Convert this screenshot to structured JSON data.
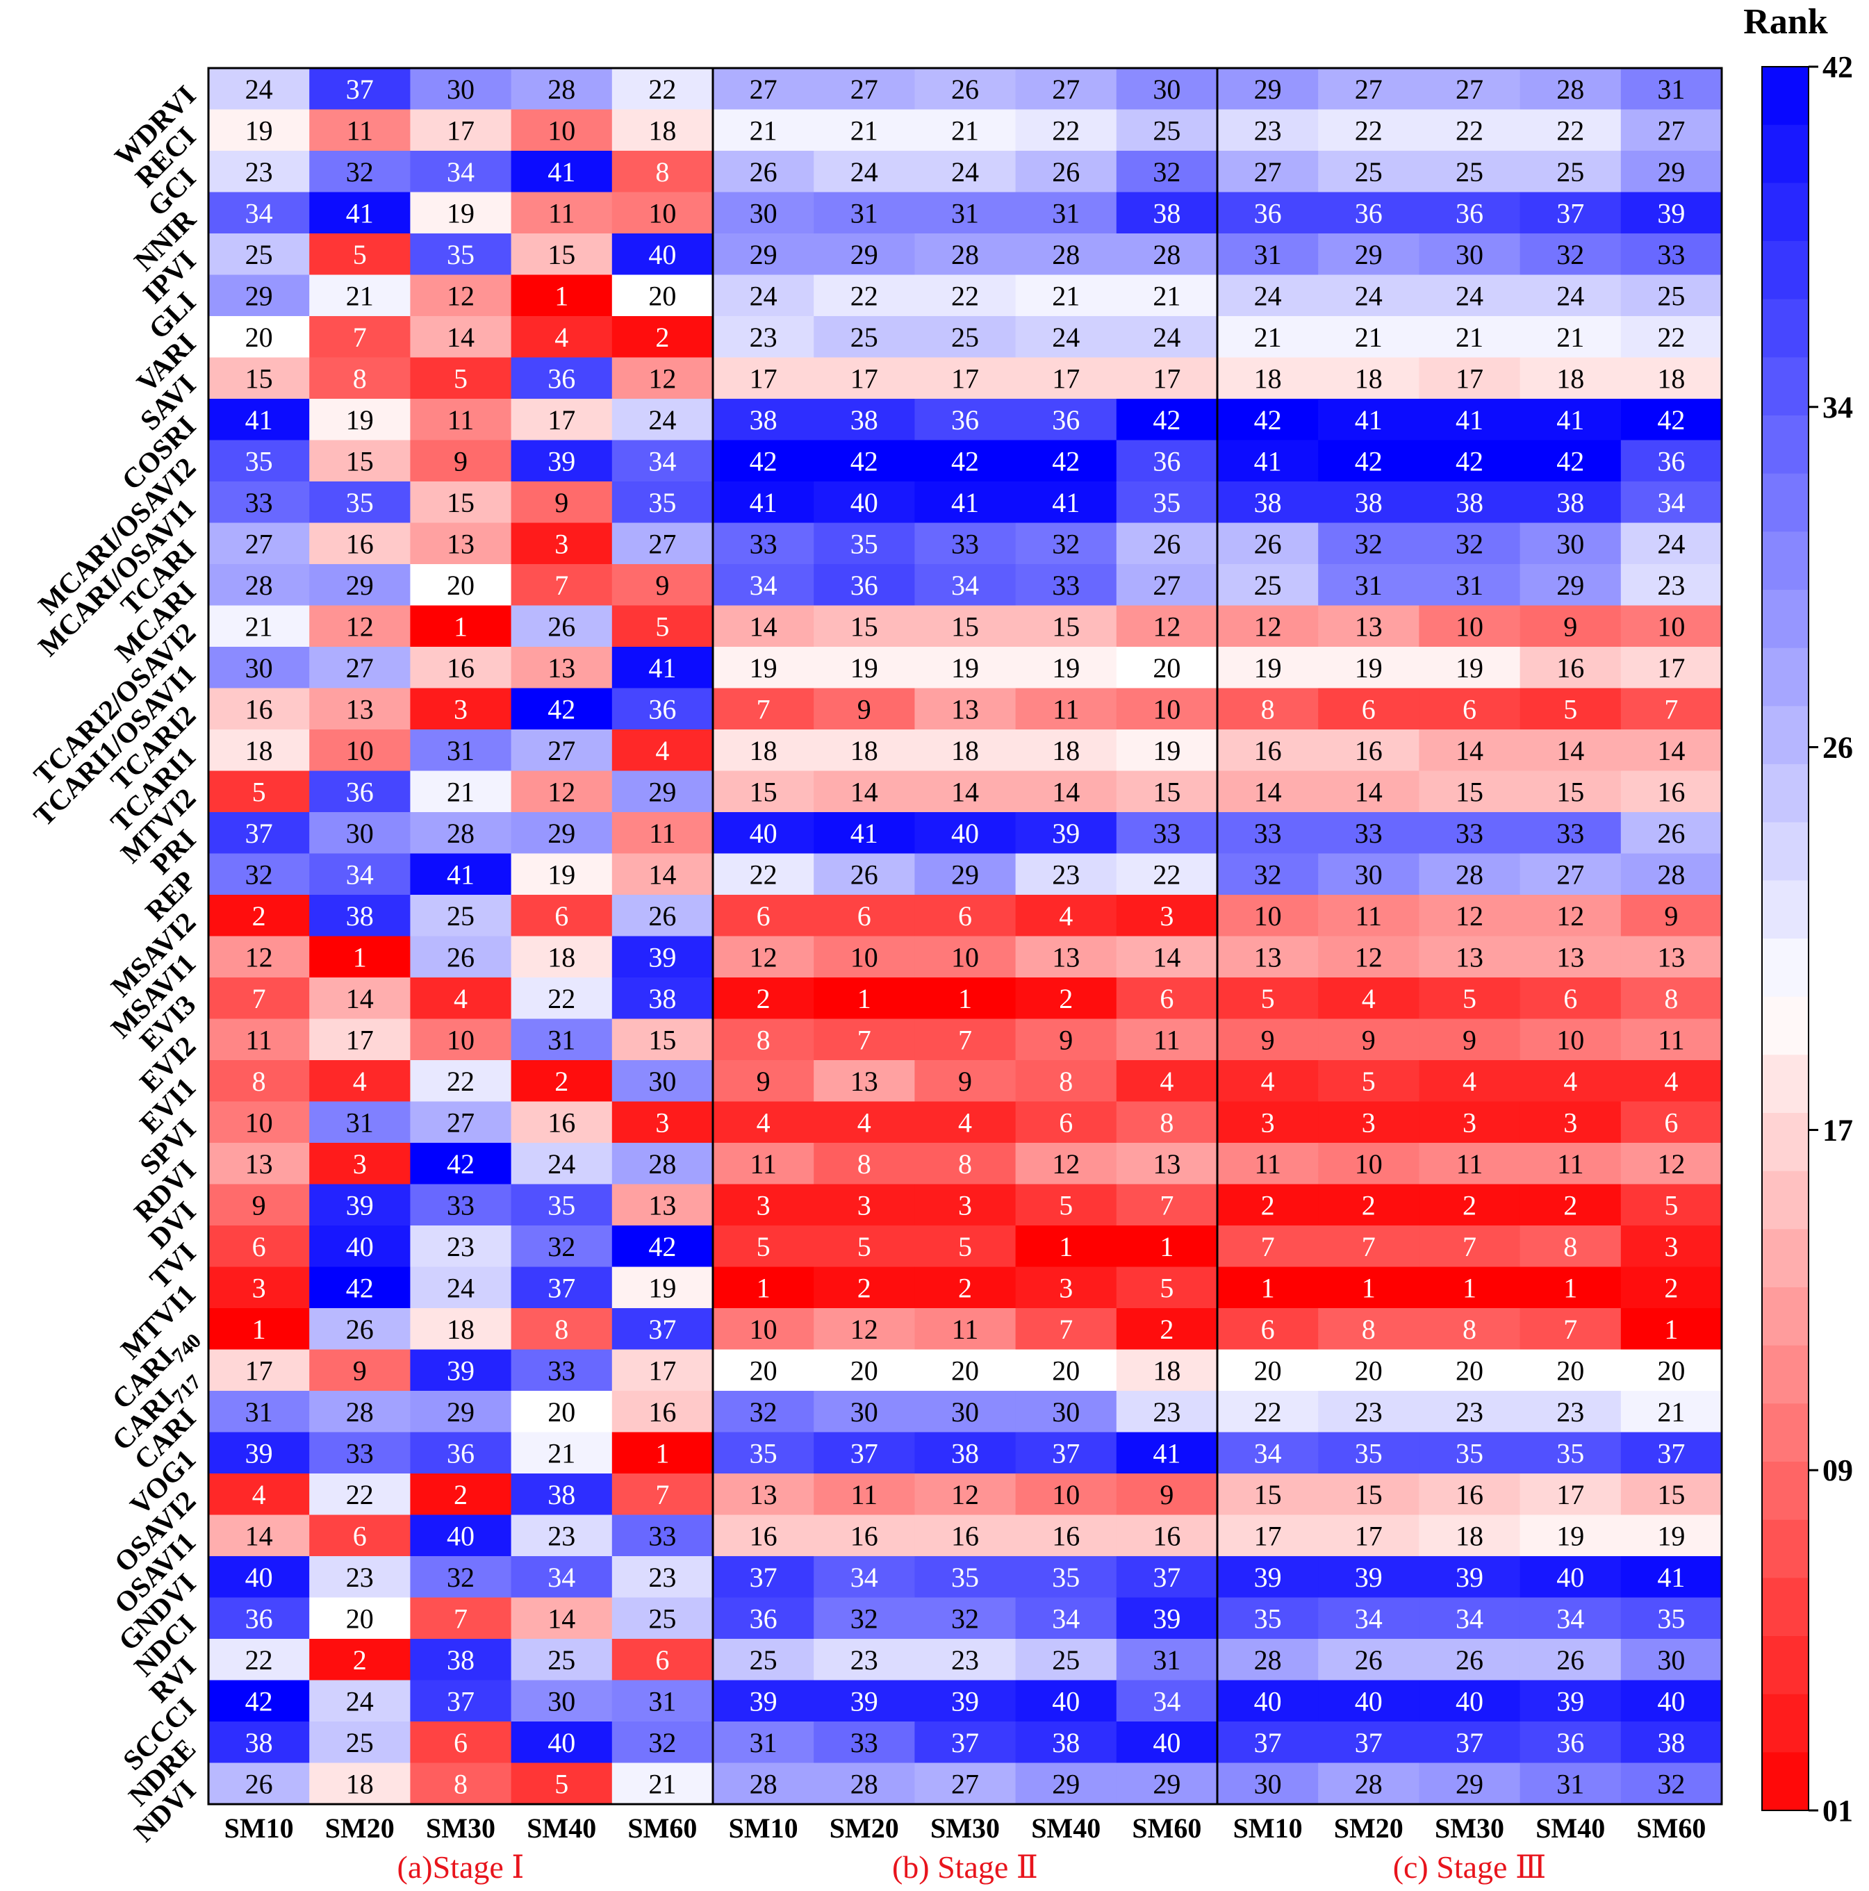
{
  "chart_data": {
    "type": "heatmap",
    "title": "",
    "colorbar": {
      "title": "Rank",
      "tick_labels": [
        "42",
        "34",
        "26",
        "17",
        "09",
        "01"
      ],
      "tick_values": [
        42,
        34,
        26,
        17,
        9,
        1
      ],
      "range": [
        1,
        42
      ],
      "low_color": "#ff0000",
      "mid_color": "#ffffff",
      "high_color": "#0000ff"
    },
    "x_label": "",
    "y_label": "",
    "columns": [
      "SM10",
      "SM20",
      "SM30",
      "SM40",
      "SM60"
    ],
    "rows": [
      "WDRVI",
      "RECI",
      "GCI",
      "NNIR",
      "IPVI",
      "GLI",
      "VARI",
      "SAVI",
      "COSRI",
      "MCARI/OSAVI2",
      "MCARI/OSAVI1",
      "TCARI",
      "MCARI",
      "TCARI2/OSAVI2",
      "TCARI1/OSAVI1",
      "TCARI2",
      "TCARI1",
      "MTVI2",
      "PRI",
      "REP",
      "MSAVI2",
      "MSAVI1",
      "EVI3",
      "EVI2",
      "EVI1",
      "SPVI",
      "RDVI",
      "DVI",
      "TVI",
      "MTVI1",
      "CARI740",
      "CARI717",
      "CARI",
      "VOG1",
      "OSAVI2",
      "OSAVI1",
      "GNDVI",
      "NDCI",
      "RVI",
      "SCCCI",
      "NDRE",
      "NDVI"
    ],
    "row_label_parts": [
      [
        "WDRVI",
        ""
      ],
      [
        "RECI",
        ""
      ],
      [
        "GCI",
        ""
      ],
      [
        "NNIR",
        ""
      ],
      [
        "IPVI",
        ""
      ],
      [
        "GLI",
        ""
      ],
      [
        "VARI",
        ""
      ],
      [
        "SAVI",
        ""
      ],
      [
        "COSRI",
        ""
      ],
      [
        "MCARI/OSAVI2",
        ""
      ],
      [
        "MCARI/OSAVI1",
        ""
      ],
      [
        "TCARI",
        ""
      ],
      [
        "MCARI",
        ""
      ],
      [
        "TCARI2/OSAVI2",
        ""
      ],
      [
        "TCARI1/OSAVI1",
        ""
      ],
      [
        "TCARI2",
        ""
      ],
      [
        "TCARI1",
        ""
      ],
      [
        "MTVI2",
        ""
      ],
      [
        "PRI",
        ""
      ],
      [
        "REP",
        ""
      ],
      [
        "MSAVI2",
        ""
      ],
      [
        "MSAVI1",
        ""
      ],
      [
        "EVI3",
        ""
      ],
      [
        "EVI2",
        ""
      ],
      [
        "EVI1",
        ""
      ],
      [
        "SPVI",
        ""
      ],
      [
        "RDVI",
        ""
      ],
      [
        "DVI",
        ""
      ],
      [
        "TVI",
        ""
      ],
      [
        "MTVI1",
        ""
      ],
      [
        "CARI",
        "740"
      ],
      [
        "CARI",
        "717"
      ],
      [
        "CARI",
        ""
      ],
      [
        "VOG1",
        ""
      ],
      [
        "OSAVI2",
        ""
      ],
      [
        "OSAVI1",
        ""
      ],
      [
        "GNDVI",
        ""
      ],
      [
        "NDCI",
        ""
      ],
      [
        "RVI",
        ""
      ],
      [
        "SCCCI",
        ""
      ],
      [
        "NDRE",
        ""
      ],
      [
        "NDVI",
        ""
      ]
    ],
    "panels": [
      {
        "name": "(a)Stage Ⅰ",
        "values": [
          [
            24,
            37,
            30,
            28,
            22
          ],
          [
            19,
            11,
            17,
            10,
            18
          ],
          [
            23,
            32,
            34,
            41,
            8
          ],
          [
            34,
            41,
            19,
            11,
            10
          ],
          [
            25,
            5,
            35,
            15,
            40
          ],
          [
            29,
            21,
            12,
            1,
            20
          ],
          [
            20,
            7,
            14,
            4,
            2
          ],
          [
            15,
            8,
            5,
            36,
            12
          ],
          [
            41,
            19,
            11,
            17,
            24
          ],
          [
            35,
            15,
            9,
            39,
            34
          ],
          [
            33,
            35,
            15,
            9,
            35
          ],
          [
            27,
            16,
            13,
            3,
            27
          ],
          [
            28,
            29,
            20,
            7,
            9
          ],
          [
            21,
            12,
            1,
            26,
            5
          ],
          [
            30,
            27,
            16,
            13,
            41
          ],
          [
            16,
            13,
            3,
            42,
            36
          ],
          [
            18,
            10,
            31,
            27,
            4
          ],
          [
            5,
            36,
            21,
            12,
            29
          ],
          [
            37,
            30,
            28,
            29,
            11
          ],
          [
            32,
            34,
            41,
            19,
            14
          ],
          [
            2,
            38,
            25,
            6,
            26
          ],
          [
            12,
            1,
            26,
            18,
            39
          ],
          [
            7,
            14,
            4,
            22,
            38
          ],
          [
            11,
            17,
            10,
            31,
            15
          ],
          [
            8,
            4,
            22,
            2,
            30
          ],
          [
            10,
            31,
            27,
            16,
            3
          ],
          [
            13,
            3,
            42,
            24,
            28
          ],
          [
            9,
            39,
            33,
            35,
            13
          ],
          [
            6,
            40,
            23,
            32,
            42
          ],
          [
            3,
            42,
            24,
            37,
            19
          ],
          [
            1,
            26,
            18,
            8,
            37
          ],
          [
            17,
            9,
            39,
            33,
            17
          ],
          [
            31,
            28,
            29,
            20,
            16
          ],
          [
            39,
            33,
            36,
            21,
            1
          ],
          [
            4,
            22,
            2,
            38,
            7
          ],
          [
            14,
            6,
            40,
            23,
            33
          ],
          [
            40,
            23,
            32,
            34,
            23
          ],
          [
            36,
            20,
            7,
            14,
            25
          ],
          [
            22,
            2,
            38,
            25,
            6
          ],
          [
            42,
            24,
            37,
            30,
            31
          ],
          [
            38,
            25,
            6,
            40,
            32
          ],
          [
            26,
            18,
            8,
            5,
            21
          ]
        ]
      },
      {
        "name": "(b) Stage Ⅱ",
        "values": [
          [
            27,
            27,
            26,
            27,
            30
          ],
          [
            21,
            21,
            21,
            22,
            25
          ],
          [
            26,
            24,
            24,
            26,
            32
          ],
          [
            30,
            31,
            31,
            31,
            38
          ],
          [
            29,
            29,
            28,
            28,
            28
          ],
          [
            24,
            22,
            22,
            21,
            21
          ],
          [
            23,
            25,
            25,
            24,
            24
          ],
          [
            17,
            17,
            17,
            17,
            17
          ],
          [
            38,
            38,
            36,
            36,
            42
          ],
          [
            42,
            42,
            42,
            42,
            36
          ],
          [
            41,
            40,
            41,
            41,
            35
          ],
          [
            33,
            35,
            33,
            32,
            26
          ],
          [
            34,
            36,
            34,
            33,
            27
          ],
          [
            14,
            15,
            15,
            15,
            12
          ],
          [
            19,
            19,
            19,
            19,
            20
          ],
          [
            7,
            9,
            13,
            11,
            10
          ],
          [
            18,
            18,
            18,
            18,
            19
          ],
          [
            15,
            14,
            14,
            14,
            15
          ],
          [
            40,
            41,
            40,
            39,
            33
          ],
          [
            22,
            26,
            29,
            23,
            22
          ],
          [
            6,
            6,
            6,
            4,
            3
          ],
          [
            12,
            10,
            10,
            13,
            14
          ],
          [
            2,
            1,
            1,
            2,
            6
          ],
          [
            8,
            7,
            7,
            9,
            11
          ],
          [
            9,
            13,
            9,
            8,
            4
          ],
          [
            4,
            4,
            4,
            6,
            8
          ],
          [
            11,
            8,
            8,
            12,
            13
          ],
          [
            3,
            3,
            3,
            5,
            7
          ],
          [
            5,
            5,
            5,
            1,
            1
          ],
          [
            1,
            2,
            2,
            3,
            5
          ],
          [
            10,
            12,
            11,
            7,
            2
          ],
          [
            20,
            20,
            20,
            20,
            18
          ],
          [
            32,
            30,
            30,
            30,
            23
          ],
          [
            35,
            37,
            38,
            37,
            41
          ],
          [
            13,
            11,
            12,
            10,
            9
          ],
          [
            16,
            16,
            16,
            16,
            16
          ],
          [
            37,
            34,
            35,
            35,
            37
          ],
          [
            36,
            32,
            32,
            34,
            39
          ],
          [
            25,
            23,
            23,
            25,
            31
          ],
          [
            39,
            39,
            39,
            40,
            34
          ],
          [
            31,
            33,
            37,
            38,
            40
          ],
          [
            28,
            28,
            27,
            29,
            29
          ]
        ]
      },
      {
        "name": "(c) Stage Ⅲ",
        "values": [
          [
            29,
            27,
            27,
            28,
            31
          ],
          [
            23,
            22,
            22,
            22,
            27
          ],
          [
            27,
            25,
            25,
            25,
            29
          ],
          [
            36,
            36,
            36,
            37,
            39
          ],
          [
            31,
            29,
            30,
            32,
            33
          ],
          [
            24,
            24,
            24,
            24,
            25
          ],
          [
            21,
            21,
            21,
            21,
            22
          ],
          [
            18,
            18,
            17,
            18,
            18
          ],
          [
            42,
            41,
            41,
            41,
            42
          ],
          [
            41,
            42,
            42,
            42,
            36
          ],
          [
            38,
            38,
            38,
            38,
            34
          ],
          [
            26,
            32,
            32,
            30,
            24
          ],
          [
            25,
            31,
            31,
            29,
            23
          ],
          [
            12,
            13,
            10,
            9,
            10
          ],
          [
            19,
            19,
            19,
            16,
            17
          ],
          [
            8,
            6,
            6,
            5,
            7
          ],
          [
            16,
            16,
            14,
            14,
            14
          ],
          [
            14,
            14,
            15,
            15,
            16
          ],
          [
            33,
            33,
            33,
            33,
            26
          ],
          [
            32,
            30,
            28,
            27,
            28
          ],
          [
            10,
            11,
            12,
            12,
            9
          ],
          [
            13,
            12,
            13,
            13,
            13
          ],
          [
            5,
            4,
            5,
            6,
            8
          ],
          [
            9,
            9,
            9,
            10,
            11
          ],
          [
            4,
            5,
            4,
            4,
            4
          ],
          [
            3,
            3,
            3,
            3,
            6
          ],
          [
            11,
            10,
            11,
            11,
            12
          ],
          [
            2,
            2,
            2,
            2,
            5
          ],
          [
            7,
            7,
            7,
            8,
            3
          ],
          [
            1,
            1,
            1,
            1,
            2
          ],
          [
            6,
            8,
            8,
            7,
            1
          ],
          [
            20,
            20,
            20,
            20,
            20
          ],
          [
            22,
            23,
            23,
            23,
            21
          ],
          [
            34,
            35,
            35,
            35,
            37
          ],
          [
            15,
            15,
            16,
            17,
            15
          ],
          [
            17,
            17,
            18,
            19,
            19
          ],
          [
            39,
            39,
            39,
            40,
            41
          ],
          [
            35,
            34,
            34,
            34,
            35
          ],
          [
            28,
            26,
            26,
            26,
            30
          ],
          [
            40,
            40,
            40,
            39,
            40
          ],
          [
            37,
            37,
            37,
            36,
            38
          ],
          [
            30,
            28,
            29,
            31,
            32
          ]
        ]
      }
    ]
  }
}
